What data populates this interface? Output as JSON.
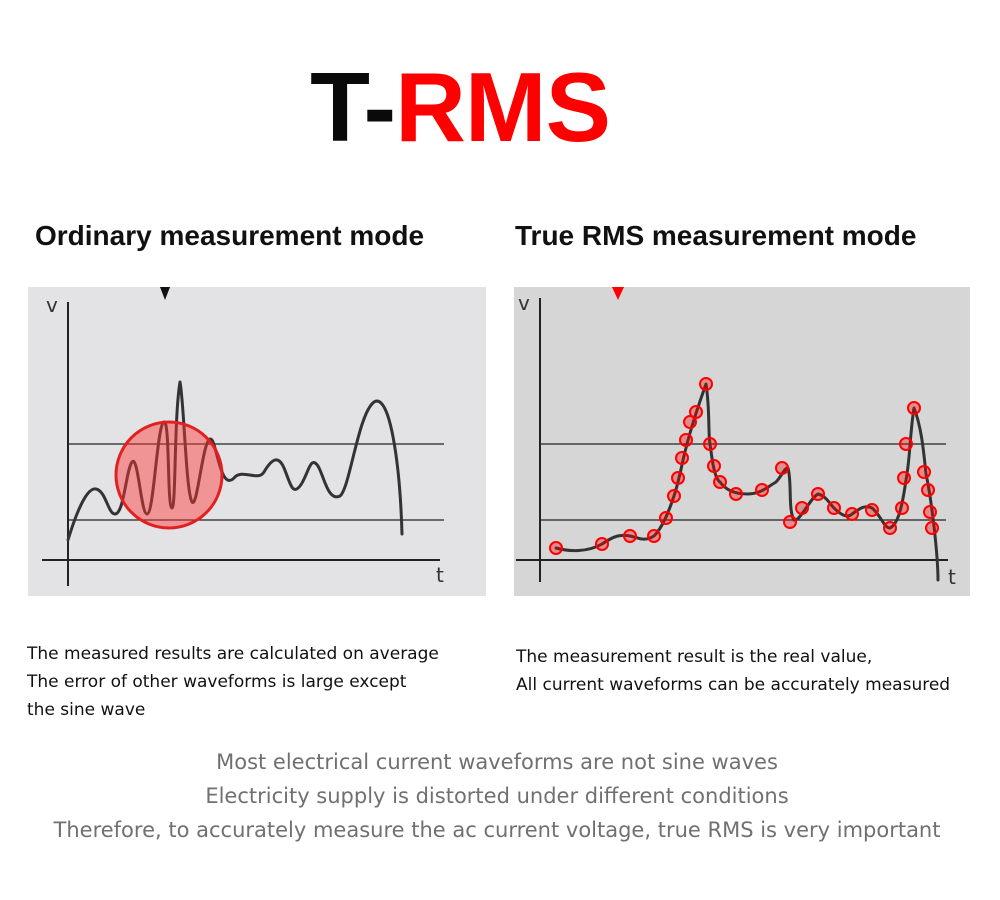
{
  "header": {
    "title_prefix": "T-",
    "title_accent": "RMS",
    "accent_color": "#ff0000"
  },
  "ordinary": {
    "title": "Ordinary measurement mode",
    "y_axis_label": "v",
    "x_axis_label": "t",
    "marker_color": "#111111",
    "panel_color": "#e3e3e5",
    "highlight_color": "#ff3333",
    "description": [
      "The measured results are calculated on average",
      "The error of other waveforms is large except",
      "the sine wave"
    ]
  },
  "true_rms": {
    "title": "True RMS measurement mode",
    "y_axis_label": "v",
    "x_axis_label": "t",
    "marker_color": "#ff0000",
    "panel_color": "#d6d6d6",
    "sample_point_color": "#ff0000",
    "description": [
      "The measurement result is the real value,",
      "All current waveforms can be accurately measured"
    ]
  },
  "footer": {
    "lines": [
      "Most electrical current waveforms are not sine waves",
      "Electricity supply is distorted under different conditions",
      "Therefore, to accurately measure the ac current voltage, true RMS is very important"
    ]
  }
}
